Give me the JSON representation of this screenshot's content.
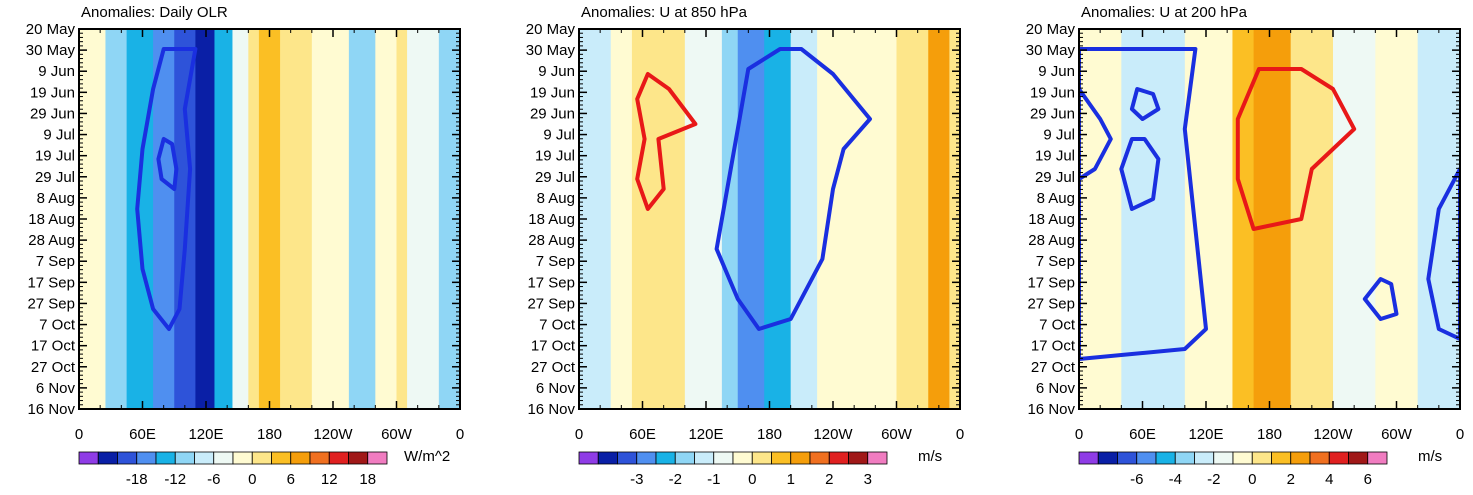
{
  "chart_data": [
    {
      "type": "heatmap",
      "title": "Anomalies: Daily OLR",
      "units": "W/m^2",
      "x_tick_labels": [
        "0",
        "60E",
        "120E",
        "180",
        "120W",
        "60W",
        "0"
      ],
      "xlim": [
        0,
        360
      ],
      "y_tick_labels": [
        "20 May",
        "30 May",
        "9 Jun",
        "19 Jun",
        "29 Jun",
        "9 Jul",
        "19 Jul",
        "29 Jul",
        "8 Aug",
        "18 Aug",
        "28 Aug",
        "7 Sep",
        "17 Sep",
        "27 Sep",
        "7 Oct",
        "17 Oct",
        "27 Oct",
        "6 Nov",
        "16 Nov"
      ],
      "colorbar_labels": [
        "-18",
        "-12",
        "-6",
        "0",
        "6",
        "12",
        "18"
      ],
      "bands": [
        {
          "lon0": 0,
          "lon1": 25,
          "level": 0.5
        },
        {
          "lon0": 25,
          "lon1": 45,
          "level": -1
        },
        {
          "lon0": 45,
          "lon1": 70,
          "level": -2
        },
        {
          "lon0": 70,
          "lon1": 90,
          "level": -3
        },
        {
          "lon0": 90,
          "lon1": 110,
          "level": -4
        },
        {
          "lon0": 110,
          "lon1": 128,
          "level": -5
        },
        {
          "lon0": 128,
          "lon1": 145,
          "level": -2
        },
        {
          "lon0": 145,
          "lon1": 160,
          "level": 0
        },
        {
          "lon0": 160,
          "lon1": 170,
          "level": 1
        },
        {
          "lon0": 170,
          "lon1": 190,
          "level": 2
        },
        {
          "lon0": 190,
          "lon1": 220,
          "level": 1
        },
        {
          "lon0": 220,
          "lon1": 255,
          "level": 0.5
        },
        {
          "lon0": 255,
          "lon1": 280,
          "level": -1
        },
        {
          "lon0": 280,
          "lon1": 300,
          "level": 0.5
        },
        {
          "lon0": 300,
          "lon1": 310,
          "level": 1
        },
        {
          "lon0": 310,
          "lon1": 340,
          "level": 0
        },
        {
          "lon0": 340,
          "lon1": 360,
          "level": -1
        }
      ],
      "contours": [
        {
          "color": "blue",
          "points": [
            [
              80,
              20
            ],
            [
              70,
              60
            ],
            [
              60,
              120
            ],
            [
              55,
              180
            ],
            [
              60,
              240
            ],
            [
              70,
              280
            ],
            [
              85,
              300
            ],
            [
              95,
              280
            ],
            [
              100,
              220
            ],
            [
              105,
              140
            ],
            [
              100,
              80
            ],
            [
              110,
              20
            ]
          ]
        },
        {
          "color": "blue",
          "points": [
            [
              80,
              110
            ],
            [
              75,
              130
            ],
            [
              78,
              150
            ],
            [
              90,
              160
            ],
            [
              92,
              140
            ],
            [
              88,
              115
            ]
          ]
        }
      ]
    },
    {
      "type": "heatmap",
      "title": "Anomalies: U at 850 hPa",
      "units": "m/s",
      "x_tick_labels": [
        "0",
        "60E",
        "120E",
        "180",
        "120W",
        "60W",
        "0"
      ],
      "xlim": [
        0,
        360
      ],
      "y_tick_labels": [
        "20 May",
        "30 May",
        "9 Jun",
        "19 Jun",
        "29 Jun",
        "9 Jul",
        "19 Jul",
        "29 Jul",
        "8 Aug",
        "18 Aug",
        "28 Aug",
        "7 Sep",
        "17 Sep",
        "27 Sep",
        "7 Oct",
        "17 Oct",
        "27 Oct",
        "6 Nov",
        "16 Nov"
      ],
      "colorbar_labels": [
        "-3",
        "-2",
        "-1",
        "0",
        "1",
        "2",
        "3"
      ],
      "bands": [
        {
          "lon0": 0,
          "lon1": 30,
          "level": -0.5
        },
        {
          "lon0": 30,
          "lon1": 50,
          "level": 0.5
        },
        {
          "lon0": 50,
          "lon1": 100,
          "level": 1
        },
        {
          "lon0": 100,
          "lon1": 135,
          "level": 0
        },
        {
          "lon0": 135,
          "lon1": 150,
          "level": -1.5
        },
        {
          "lon0": 150,
          "lon1": 175,
          "level": -3
        },
        {
          "lon0": 175,
          "lon1": 200,
          "level": -2
        },
        {
          "lon0": 200,
          "lon1": 225,
          "level": -0.5
        },
        {
          "lon0": 225,
          "lon1": 300,
          "level": 0.5
        },
        {
          "lon0": 300,
          "lon1": 330,
          "level": 1
        },
        {
          "lon0": 330,
          "lon1": 350,
          "level": 3
        },
        {
          "lon0": 350,
          "lon1": 360,
          "level": 1
        }
      ],
      "contours": [
        {
          "color": "red",
          "points": [
            [
              65,
              45
            ],
            [
              55,
              70
            ],
            [
              62,
              110
            ],
            [
              55,
              150
            ],
            [
              65,
              180
            ],
            [
              80,
              160
            ],
            [
              75,
              110
            ],
            [
              110,
              95
            ],
            [
              85,
              60
            ]
          ]
        },
        {
          "color": "blue",
          "points": [
            [
              190,
              20
            ],
            [
              160,
              40
            ],
            [
              150,
              100
            ],
            [
              140,
              160
            ],
            [
              130,
              220
            ],
            [
              150,
              270
            ],
            [
              170,
              300
            ],
            [
              200,
              290
            ],
            [
              230,
              230
            ],
            [
              240,
              160
            ],
            [
              250,
              120
            ],
            [
              275,
              90
            ],
            [
              240,
              45
            ],
            [
              210,
              20
            ]
          ]
        }
      ]
    },
    {
      "type": "heatmap",
      "title": "Anomalies: U at 200 hPa",
      "units": "m/s",
      "x_tick_labels": [
        "0",
        "60E",
        "120E",
        "180",
        "120W",
        "60W",
        "0"
      ],
      "xlim": [
        0,
        360
      ],
      "y_tick_labels": [
        "20 May",
        "30 May",
        "9 Jun",
        "19 Jun",
        "29 Jun",
        "9 Jul",
        "19 Jul",
        "29 Jul",
        "8 Aug",
        "18 Aug",
        "28 Aug",
        "7 Sep",
        "17 Sep",
        "27 Sep",
        "7 Oct",
        "17 Oct",
        "27 Oct",
        "6 Nov",
        "16 Nov"
      ],
      "colorbar_labels": [
        "-6",
        "-4",
        "-2",
        "0",
        "2",
        "4",
        "6"
      ],
      "bands": [
        {
          "lon0": 0,
          "lon1": 40,
          "level": 0.5
        },
        {
          "lon0": 40,
          "lon1": 100,
          "level": -0.5
        },
        {
          "lon0": 100,
          "lon1": 145,
          "level": 0.5
        },
        {
          "lon0": 145,
          "lon1": 165,
          "level": 2
        },
        {
          "lon0": 165,
          "lon1": 200,
          "level": 3
        },
        {
          "lon0": 200,
          "lon1": 240,
          "level": 1
        },
        {
          "lon0": 240,
          "lon1": 280,
          "level": 0
        },
        {
          "lon0": 280,
          "lon1": 320,
          "level": 0.5
        },
        {
          "lon0": 320,
          "lon1": 360,
          "level": -0.5
        }
      ],
      "contours": [
        {
          "color": "red",
          "points": [
            [
              170,
              40
            ],
            [
              150,
              90
            ],
            [
              150,
              150
            ],
            [
              165,
              200
            ],
            [
              210,
              190
            ],
            [
              220,
              140
            ],
            [
              260,
              100
            ],
            [
              240,
              60
            ],
            [
              210,
              40
            ]
          ]
        },
        {
          "color": "blue",
          "points": [
            [
              0,
              60
            ],
            [
              20,
              90
            ],
            [
              30,
              110
            ],
            [
              15,
              140
            ],
            [
              0,
              150
            ]
          ]
        },
        {
          "color": "blue",
          "points": [
            [
              55,
              60
            ],
            [
              50,
              80
            ],
            [
              60,
              90
            ],
            [
              75,
              80
            ],
            [
              70,
              65
            ]
          ]
        },
        {
          "color": "blue",
          "points": [
            [
              50,
              110
            ],
            [
              40,
              140
            ],
            [
              50,
              180
            ],
            [
              70,
              170
            ],
            [
              75,
              130
            ],
            [
              62,
              110
            ]
          ]
        },
        {
          "color": "blue",
          "points": [
            [
              285,
              250
            ],
            [
              270,
              270
            ],
            [
              285,
              290
            ],
            [
              300,
              285
            ],
            [
              295,
              255
            ]
          ]
        },
        {
          "color": "blue",
          "points": [
            [
              0,
              330
            ],
            [
              50,
              325
            ],
            [
              100,
              320
            ],
            [
              120,
              300
            ],
            [
              110,
              200
            ],
            [
              100,
              100
            ],
            [
              110,
              20
            ],
            [
              0,
              20
            ]
          ]
        },
        {
          "color": "blue",
          "points": [
            [
              360,
              140
            ],
            [
              340,
              180
            ],
            [
              330,
              250
            ],
            [
              340,
              300
            ],
            [
              360,
              310
            ]
          ]
        }
      ]
    }
  ]
}
